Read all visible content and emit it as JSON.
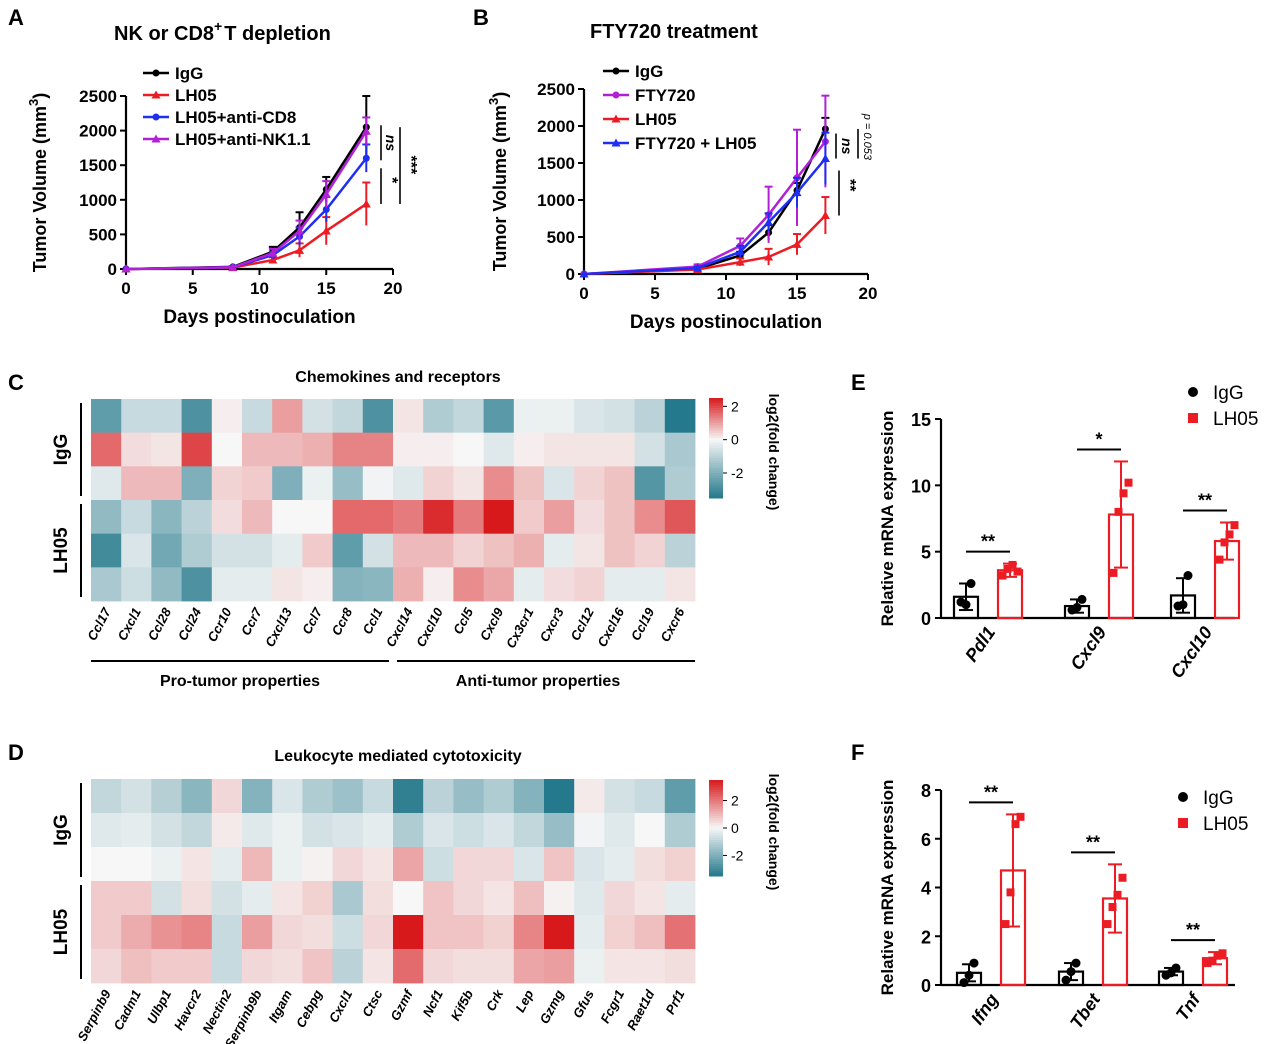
{
  "colors": {
    "black": "#000000",
    "red": "#ec1c24",
    "blue": "#1f2ff2",
    "purple": "#b120d6",
    "heat_low": "#24798c",
    "heat_mid": "#f7f7f7",
    "heat_high": "#d7191c"
  },
  "chart_data": [
    {
      "panel": "A",
      "type": "line",
      "title_pre": "NK or CD8",
      "title_sup": "+",
      "title_post": "T depletion",
      "xlabel": "Days postinoculation",
      "ylabel": "Tumor Volume (mm",
      "ylabel_sup": "3",
      "ylabel_close": ")",
      "xlim": [
        0,
        20
      ],
      "ylim": [
        0,
        2500
      ],
      "xticks": [
        "0",
        "5",
        "10",
        "15",
        "20"
      ],
      "yticks": [
        "0",
        "500",
        "1000",
        "1500",
        "2000",
        "2500"
      ],
      "x": [
        0,
        8,
        11,
        13,
        15,
        18
      ],
      "series": [
        {
          "name": "IgG",
          "color": "#000000",
          "marker": "circle",
          "values": [
            0,
            30,
            250,
            600,
            1150,
            2050
          ],
          "err": [
            0,
            10,
            70,
            220,
            180,
            450
          ]
        },
        {
          "name": "LH05",
          "color": "#ec1c24",
          "marker": "triangle",
          "values": [
            0,
            20,
            130,
            270,
            550,
            940
          ],
          "err": [
            0,
            10,
            40,
            100,
            200,
            310
          ]
        },
        {
          "name": "LH05+anti-CD8",
          "color": "#1f2ff2",
          "marker": "circle",
          "values": [
            0,
            25,
            200,
            470,
            860,
            1600
          ],
          "err": [
            0,
            10,
            50,
            130,
            180,
            200
          ]
        },
        {
          "name": "LH05+anti-NK1.1",
          "color": "#b120d6",
          "marker": "triangle",
          "values": [
            0,
            25,
            230,
            550,
            1080,
            1990
          ],
          "err": [
            0,
            10,
            60,
            150,
            190,
            200
          ]
        }
      ],
      "annotations": [
        "ns",
        "*",
        "***"
      ]
    },
    {
      "panel": "B",
      "type": "line",
      "title": "FTY720 treatment",
      "xlabel": "Days postinoculation",
      "ylabel": "Tumor Volume (mm",
      "ylabel_sup": "3",
      "ylabel_close": ")",
      "xlim": [
        0,
        20
      ],
      "ylim": [
        0,
        2500
      ],
      "xticks": [
        "0",
        "5",
        "10",
        "15",
        "20"
      ],
      "yticks": [
        "0",
        "500",
        "1000",
        "1500",
        "2000",
        "2500"
      ],
      "x": [
        0,
        8,
        11,
        13,
        15,
        17
      ],
      "series": [
        {
          "name": "IgG",
          "color": "#000000",
          "marker": "circle",
          "values": [
            0,
            70,
            250,
            560,
            1130,
            1960
          ],
          "err": [
            0,
            20,
            50,
            100,
            100,
            150
          ]
        },
        {
          "name": "FTY720",
          "color": "#b120d6",
          "marker": "circle",
          "values": [
            0,
            100,
            380,
            800,
            1300,
            1790
          ],
          "err": [
            0,
            30,
            100,
            380,
            650,
            620
          ]
        },
        {
          "name": "LH05",
          "color": "#ec1c24",
          "marker": "triangle",
          "values": [
            0,
            60,
            160,
            230,
            400,
            790
          ],
          "err": [
            0,
            20,
            50,
            110,
            140,
            250
          ]
        },
        {
          "name": "FTY720 + LH05",
          "color": "#1f2ff2",
          "marker": "triangle",
          "values": [
            0,
            80,
            300,
            700,
            1100,
            1560
          ],
          "err": [
            0,
            20,
            80,
            120,
            200,
            350
          ]
        }
      ],
      "annotations": [
        "ns",
        "p = 0.053",
        "**"
      ]
    },
    {
      "panel": "C",
      "type": "heatmap",
      "title": "Chemokines and receptors",
      "rows": [
        "IgG",
        "IgG",
        "IgG",
        "LH05",
        "LH05",
        "LH05"
      ],
      "group_labels": [
        "IgG",
        "LH05"
      ],
      "columns": [
        "Ccl17",
        "Cxcl1",
        "Ccl28",
        "Ccl24",
        "Ccr10",
        "Ccr7",
        "Cxcl13",
        "Ccl7",
        "Ccr8",
        "Ccl1",
        "Cxcl14",
        "Cxcl10",
        "Ccl5",
        "Cxcl9",
        "Cx3cr1",
        "Cxcr3",
        "Ccl12",
        "Cxcl16",
        "Ccl19",
        "Cxcr6"
      ],
      "values": [
        [
          -2.5,
          -0.8,
          -0.8,
          -2.8,
          0.1,
          -0.8,
          1.0,
          -0.6,
          -0.9,
          -2.8,
          0.2,
          -1.2,
          -0.9,
          -2.6,
          -0.2,
          -0.2,
          -0.5,
          -0.6,
          -1.0,
          -3.5
        ],
        [
          1.6,
          0.3,
          0.2,
          2.0,
          0.0,
          0.7,
          0.7,
          0.8,
          1.3,
          1.3,
          0.1,
          0.1,
          0.0,
          -0.4,
          0.1,
          0.2,
          0.2,
          0.2,
          -0.6,
          -1.3
        ],
        [
          -0.4,
          0.7,
          0.7,
          -2.0,
          0.4,
          0.5,
          -2.0,
          -0.2,
          -1.6,
          -0.1,
          -0.4,
          0.4,
          0.2,
          1.2,
          0.6,
          -0.5,
          0.4,
          0.6,
          -2.7,
          -1.2
        ],
        [
          -1.7,
          -0.8,
          -1.8,
          -1.0,
          0.3,
          0.7,
          0.0,
          0.0,
          1.6,
          1.6,
          1.4,
          2.3,
          1.4,
          3.1,
          0.5,
          1.0,
          0.3,
          0.6,
          1.2,
          1.8
        ],
        [
          -3.0,
          -0.5,
          -2.2,
          -1.2,
          -0.6,
          -0.6,
          -0.3,
          0.5,
          -2.5,
          -0.6,
          0.7,
          0.7,
          0.4,
          0.6,
          0.8,
          -0.3,
          0.2,
          0.6,
          0.4,
          -1.0
        ],
        [
          -1.3,
          -0.7,
          -1.7,
          -2.8,
          -0.3,
          -0.3,
          0.2,
          0.1,
          -1.9,
          -1.8,
          0.8,
          0.1,
          1.2,
          0.9,
          -0.3,
          0.3,
          0.4,
          -0.3,
          -0.3,
          0.2
        ]
      ],
      "colorbar_label": "log2(fold change)",
      "colorbar_ticks": [
        "2",
        "0",
        "-2"
      ],
      "colorbar_range": [
        -3.5,
        2.5
      ],
      "brackets": [
        "Pro-tumor properties",
        "Anti-tumor properties"
      ]
    },
    {
      "panel": "D",
      "type": "heatmap",
      "title": "Leukocyte mediated cytotoxicity",
      "rows": [
        "IgG",
        "IgG",
        "IgG",
        "LH05",
        "LH05",
        "LH05"
      ],
      "group_labels": [
        "IgG",
        "LH05"
      ],
      "columns": [
        "Serpinb9",
        "Cadm1",
        "Ulbp1",
        "Havcr2",
        "Nectin2",
        "Serpinb9b",
        "Itgam",
        "Cebpg",
        "Cxcl1",
        "Ctsc",
        "Gzmf",
        "Ncf1",
        "Kif5b",
        "Crk",
        "Lep",
        "Gzmg",
        "Gfus",
        "Fcgr1",
        "Raet1d",
        "Prf1"
      ],
      "values": [
        [
          -0.9,
          -0.6,
          -1.1,
          -1.8,
          0.5,
          -1.9,
          -0.5,
          -1.2,
          -1.5,
          -0.8,
          -3.3,
          -1.0,
          -1.6,
          -1.2,
          -1.9,
          -3.6,
          0.2,
          -0.6,
          -0.8,
          -2.5
        ],
        [
          -0.4,
          -0.3,
          -0.6,
          -0.9,
          0.2,
          -0.4,
          -0.2,
          -0.6,
          -0.5,
          -0.3,
          -1.2,
          -0.5,
          -0.7,
          -0.5,
          -0.9,
          -1.6,
          -0.1,
          -0.4,
          0.0,
          -1.2
        ],
        [
          0.0,
          0.0,
          -0.2,
          0.3,
          -0.3,
          1.0,
          -0.2,
          0.1,
          0.5,
          0.3,
          1.3,
          -0.7,
          0.5,
          0.5,
          -0.5,
          0.8,
          -0.5,
          -0.3,
          0.4,
          0.6
        ],
        [
          0.7,
          0.7,
          -0.6,
          0.4,
          -0.6,
          -0.3,
          0.3,
          0.6,
          -1.3,
          0.4,
          0.0,
          0.8,
          0.5,
          0.3,
          0.9,
          0.1,
          -0.4,
          0.5,
          0.3,
          -0.3
        ],
        [
          0.7,
          1.2,
          1.6,
          1.8,
          -0.8,
          1.4,
          0.5,
          0.4,
          -0.7,
          0.5,
          3.6,
          0.8,
          0.8,
          0.6,
          1.8,
          3.6,
          -0.3,
          0.6,
          0.9,
          2.1
        ],
        [
          0.5,
          0.9,
          0.7,
          0.7,
          -0.8,
          0.5,
          0.4,
          0.8,
          -1.0,
          0.3,
          2.2,
          0.5,
          0.4,
          0.4,
          1.3,
          1.4,
          -0.2,
          0.3,
          0.3,
          0.4
        ]
      ],
      "colorbar_label": "log2(fold change)",
      "colorbar_ticks": [
        "2",
        "0",
        "-2"
      ],
      "colorbar_range": [
        -3.5,
        3.5
      ]
    },
    {
      "panel": "E",
      "type": "bar",
      "ylabel": "Relative mRNA expression",
      "ylim": [
        0,
        15
      ],
      "yticks": [
        "0",
        "5",
        "10",
        "15"
      ],
      "categories": [
        "Pdl1",
        "Cxcl9",
        "Cxcl10"
      ],
      "series": [
        {
          "name": "IgG",
          "color": "#000000",
          "values": [
            1.6,
            0.9,
            1.7
          ],
          "err": [
            1.0,
            0.5,
            1.3
          ],
          "points": [
            [
              1.2,
              1.0,
              2.6
            ],
            [
              0.6,
              0.8,
              1.4
            ],
            [
              0.9,
              1.0,
              3.2
            ]
          ]
        },
        {
          "name": "LH05",
          "color": "#ec1c24",
          "values": [
            3.6,
            7.8,
            5.8
          ],
          "err": [
            0.5,
            4.0,
            1.4
          ],
          "points": [
            [
              3.2,
              3.7,
              4.0,
              3.5
            ],
            [
              3.4,
              8.0,
              9.4,
              10.2
            ],
            [
              4.4,
              5.7,
              6.3,
              7.0
            ]
          ]
        }
      ],
      "significance": [
        "**",
        "*",
        "**"
      ]
    },
    {
      "panel": "F",
      "type": "bar",
      "ylabel": "Relative mRNA expression",
      "ylim": [
        0,
        8
      ],
      "yticks": [
        "0",
        "2",
        "4",
        "6",
        "8"
      ],
      "categories": [
        "Ifng",
        "Tbet",
        "Tnf"
      ],
      "series": [
        {
          "name": "IgG",
          "color": "#000000",
          "values": [
            0.5,
            0.55,
            0.55
          ],
          "err": [
            0.35,
            0.35,
            0.15
          ],
          "points": [
            [
              0.1,
              0.4,
              0.9
            ],
            [
              0.2,
              0.55,
              0.9
            ],
            [
              0.4,
              0.5,
              0.7
            ]
          ]
        },
        {
          "name": "LH05",
          "color": "#ec1c24",
          "values": [
            4.7,
            3.55,
            1.1
          ],
          "err": [
            2.3,
            1.4,
            0.25
          ],
          "points": [
            [
              2.5,
              3.8,
              6.6,
              6.9
            ],
            [
              2.5,
              3.2,
              3.7,
              4.4
            ],
            [
              0.9,
              1.0,
              1.2,
              1.3
            ]
          ]
        }
      ],
      "significance": [
        "**",
        "**",
        "**"
      ]
    }
  ],
  "panel_letters": [
    "A",
    "B",
    "C",
    "D",
    "E",
    "F"
  ]
}
